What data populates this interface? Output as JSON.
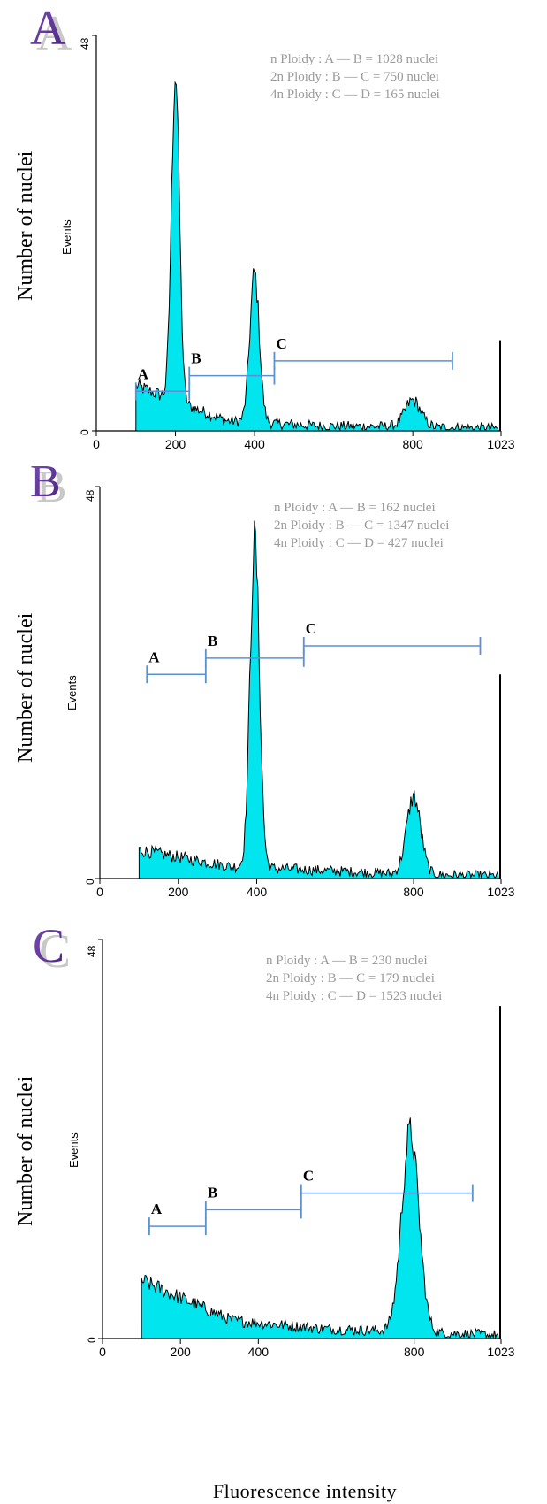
{
  "figure": {
    "ylabel": "Number of nuclei",
    "xlabel": "Fluorescence intensity",
    "inner_ylabel": "Events"
  },
  "colors": {
    "fill": "#00E5EE",
    "outline": "#000000",
    "gate": "#5B8FD6",
    "info_text": "#9A9A9A",
    "panel_letter": "#6B3FA0",
    "panel_shadow": "#BDBDBD"
  },
  "chart_data": [
    {
      "panel": "A",
      "type": "area",
      "xlim": [
        0,
        1023
      ],
      "ylim": [
        0,
        48
      ],
      "x_ticks": [
        "0",
        "200",
        "400",
        "800",
        "1023"
      ],
      "y_ticks": [
        "0",
        "48"
      ],
      "info": [
        "n   Ploidy : A — B = 1028 nuclei",
        "2n Ploidy : B — C = 750 nuclei",
        "4n Ploidy : C — D = 165 nuclei"
      ],
      "gates": [
        {
          "label": "A",
          "x1": 100,
          "x2": 235,
          "y": 4.8
        },
        {
          "label": "B",
          "x1": 235,
          "x2": 450,
          "y": 6.7
        },
        {
          "label": "C",
          "x1": 450,
          "x2": 900,
          "y": 8.5
        }
      ],
      "peaks": [
        [
          200,
          40,
          10
        ],
        [
          400,
          18,
          12
        ],
        [
          800,
          3.2,
          20
        ]
      ],
      "baseline": [
        5.5,
        1.2,
        0.6,
        0.5,
        0.3
      ],
      "edge": 11
    },
    {
      "panel": "B",
      "type": "area",
      "xlim": [
        0,
        1023
      ],
      "ylim": [
        0,
        48
      ],
      "x_ticks": [
        "0",
        "200",
        "400",
        "800",
        "1023"
      ],
      "y_ticks": [
        "0",
        "48"
      ],
      "info": [
        "n   Ploidy : A — B = 162 nuclei",
        "2n Ploidy : B — C = 1347 nuclei",
        "4n Ploidy : C — D = 427 nuclei"
      ],
      "gates": [
        {
          "label": "A",
          "x1": 120,
          "x2": 270,
          "y": 25
        },
        {
          "label": "B",
          "x1": 270,
          "x2": 520,
          "y": 27
        },
        {
          "label": "C",
          "x1": 520,
          "x2": 970,
          "y": 28.5
        }
      ],
      "peaks": [
        [
          395,
          40,
          12
        ],
        [
          800,
          9.5,
          18
        ]
      ],
      "baseline": [
        3.5,
        1.5,
        1.0,
        0.5,
        0.3
      ],
      "edge": 25
    },
    {
      "panel": "C",
      "type": "area",
      "xlim": [
        0,
        1023
      ],
      "ylim": [
        0,
        48
      ],
      "x_ticks": [
        "0",
        "200",
        "400",
        "800",
        "1023"
      ],
      "y_ticks": [
        "0",
        "48"
      ],
      "info": [
        "n   Ploidy : A — B = 230 nuclei",
        "2n Ploidy : B — C = 179 nuclei",
        "4n Ploidy : C — D = 1523 nuclei"
      ],
      "gates": [
        {
          "label": "A",
          "x1": 120,
          "x2": 265,
          "y": 13.5
        },
        {
          "label": "B",
          "x1": 265,
          "x2": 510,
          "y": 15.5
        },
        {
          "label": "C",
          "x1": 510,
          "x2": 950,
          "y": 17.5
        }
      ],
      "peaks": [
        [
          790,
          24,
          22
        ]
      ],
      "baseline": [
        7,
        2.2,
        1.2,
        0.8,
        0.4
      ],
      "edge": 40
    }
  ]
}
